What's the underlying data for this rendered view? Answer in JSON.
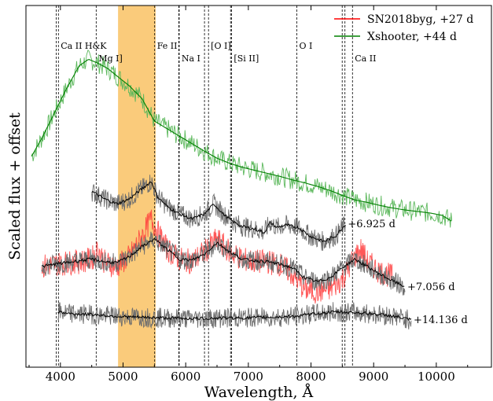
{
  "chart_data": {
    "type": "line",
    "xlabel": "Wavelength, Å",
    "ylabel": "Scaled flux + offset",
    "xlim": [
      3450,
      10880
    ],
    "x_ticks": [
      4000,
      5000,
      6000,
      7000,
      8000,
      9000,
      10000
    ],
    "y_ticks_labeled": false,
    "grid": false,
    "legend": {
      "placement": "top-right",
      "entries": [
        {
          "label": "SN2018byg, +27 d",
          "color": "#ff0000"
        },
        {
          "label": "Xshooter, +44 d",
          "color": "#008000"
        }
      ]
    },
    "shaded_band": {
      "x_start": 4920,
      "x_end": 5520,
      "color": "#f7a823"
    },
    "line_ids": [
      {
        "label": "Ca II H&K",
        "x": [
          3934,
          3968
        ],
        "row": 1
      },
      {
        "label": "Mg I]",
        "x": [
          4571
        ],
        "row": 2
      },
      {
        "label": "Fe II",
        "x": [
          5505
        ],
        "row": 1
      },
      {
        "label": "Na I",
        "x": [
          5890,
          5896
        ],
        "row": 2
      },
      {
        "label": "[O I]",
        "x": [
          6300,
          6364
        ],
        "row": 1
      },
      {
        "label": "[Si II]",
        "x": [
          6716,
          6731
        ],
        "row": 2
      },
      {
        "label": "O I",
        "x": [
          7774
        ],
        "row": 1
      },
      {
        "label": "Ca II",
        "x": [
          8498,
          8542,
          8662
        ],
        "row": 2
      }
    ],
    "series": [
      {
        "name": "Xshooter, +44 d",
        "color": "#008000",
        "x": [
          3540,
          3700,
          3900,
          4100,
          4300,
          4450,
          4600,
          4750,
          4900,
          5100,
          5300,
          5500,
          5700,
          5900,
          6100,
          6300,
          6500,
          6700,
          6900,
          7100,
          7300,
          7500,
          7700,
          7900,
          8100,
          8300,
          8500,
          8700,
          8900,
          9100,
          9300,
          9500,
          9700,
          9900,
          10100,
          10250
        ],
        "y": [
          52.0,
          55.5,
          60.5,
          65.5,
          70.0,
          71.3,
          70.5,
          69.5,
          68.0,
          66.0,
          63.5,
          59.0,
          57.5,
          56.0,
          54.5,
          53.0,
          51.6,
          50.6,
          49.8,
          49.2,
          48.6,
          48.0,
          47.3,
          46.7,
          46.0,
          45.2,
          44.2,
          43.3,
          42.8,
          42.2,
          41.7,
          41.3,
          41.0,
          40.7,
          40.2,
          39.0
        ]
      },
      {
        "name": "",
        "color": "#000000",
        "label": "+6.925 d",
        "x": [
          4500,
          4700,
          4900,
          5100,
          5300,
          5450,
          5550,
          5700,
          5900,
          6100,
          6300,
          6450,
          6600,
          6750,
          6900,
          7100,
          7250,
          7350,
          7450,
          7600,
          7800,
          8000,
          8200,
          8400,
          8550
        ],
        "y": [
          45.0,
          43.5,
          42.5,
          43.5,
          45.5,
          47.0,
          44.0,
          42.0,
          40.5,
          39.5,
          40.5,
          42.5,
          40.5,
          39.0,
          38.0,
          37.5,
          36.8,
          38.8,
          37.8,
          38.3,
          37.8,
          36.0,
          35.0,
          36.2,
          38.5
        ]
      },
      {
        "name": "SN2018byg, +27 d",
        "color": "#ff0000",
        "x": [
          3700,
          3900,
          4100,
          4300,
          4500,
          4600,
          4700,
          4900,
          5100,
          5300,
          5450,
          5550,
          5700,
          5900,
          6100,
          6300,
          6500,
          6700,
          6900,
          7100,
          7300,
          7500,
          7700,
          7900,
          8100,
          8300,
          8500,
          8700,
          8800,
          8900,
          9100,
          9300
        ],
        "y": [
          30.0,
          30.5,
          30.8,
          31.0,
          31.5,
          33.5,
          31.0,
          30.0,
          32.0,
          36.0,
          39.5,
          37.0,
          33.5,
          31.5,
          31.0,
          33.0,
          35.5,
          33.0,
          31.5,
          31.0,
          31.0,
          30.5,
          28.5,
          25.5,
          25.0,
          25.5,
          27.5,
          32.0,
          33.5,
          31.0,
          29.0,
          28.0
        ]
      },
      {
        "name": "",
        "color": "#000000",
        "label": "+7.056 d",
        "x": [
          3700,
          3900,
          4100,
          4300,
          4500,
          4700,
          4900,
          5100,
          5300,
          5500,
          5700,
          5900,
          6100,
          6300,
          6500,
          6700,
          6900,
          7100,
          7300,
          7500,
          7700,
          7900,
          8100,
          8300,
          8500,
          8700,
          8900,
          9100,
          9300,
          9500
        ],
        "y": [
          30.0,
          30.5,
          30.8,
          31.2,
          31.5,
          31.0,
          30.8,
          32.0,
          34.0,
          35.5,
          33.5,
          31.5,
          31.3,
          32.5,
          34.8,
          33.0,
          31.5,
          31.2,
          31.0,
          30.5,
          29.8,
          27.8,
          27.0,
          27.8,
          29.8,
          31.5,
          30.0,
          28.5,
          27.2,
          26.0
        ]
      },
      {
        "name": "",
        "color": "#000000",
        "label": "+14.136 d",
        "x": [
          3960,
          4200,
          4500,
          4800,
          5100,
          5400,
          5700,
          6000,
          6300,
          6600,
          6900,
          7200,
          7500,
          7800,
          8100,
          8400,
          8700,
          9000,
          9300,
          9600
        ],
        "y": [
          21.0,
          20.6,
          20.5,
          20.2,
          20.0,
          19.9,
          19.8,
          19.7,
          19.7,
          19.8,
          19.8,
          19.9,
          20.0,
          20.2,
          20.7,
          21.0,
          20.9,
          20.6,
          20.2,
          19.4
        ]
      }
    ]
  }
}
